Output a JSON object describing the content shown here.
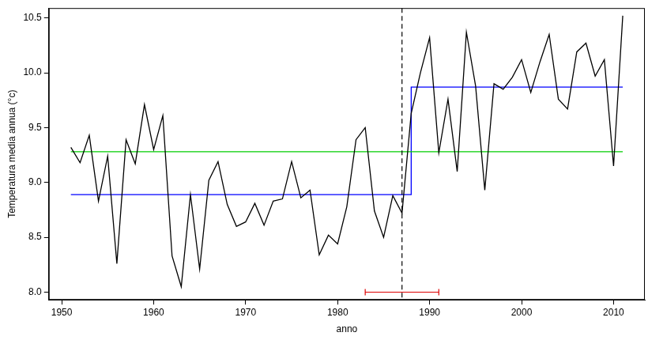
{
  "chart_data": {
    "type": "line",
    "xlabel": "anno",
    "ylabel": "Temperatura media annua (°c)",
    "xlim": [
      1948.6,
      2013.4
    ],
    "xticks": [
      1950,
      1960,
      1970,
      1980,
      1990,
      2000,
      2010
    ],
    "ylim": [
      7.93,
      10.59
    ],
    "yticks": [
      {
        "value": 8,
        "label": "8.0"
      },
      {
        "value": 8.5,
        "label": "8.5"
      },
      {
        "value": 9,
        "label": "9.0"
      },
      {
        "value": 9.5,
        "label": "9.5"
      },
      {
        "value": 10,
        "label": "10.0"
      },
      {
        "value": 10.5,
        "label": "10.5"
      }
    ],
    "grid": false,
    "series": [
      {
        "color": "#000000",
        "marker": "none",
        "line_style": "solid",
        "x": [
          1951,
          1952,
          1953,
          1954,
          1955,
          1956,
          1957,
          1958,
          1959,
          1960,
          1961,
          1962,
          1963,
          1964,
          1965,
          1966,
          1967,
          1968,
          1969,
          1970,
          1971,
          1972,
          1973,
          1974,
          1975,
          1976,
          1977,
          1978,
          1979,
          1980,
          1981,
          1982,
          1983,
          1984,
          1985,
          1986,
          1987,
          1988,
          1989,
          1990,
          1991,
          1992,
          1993,
          1994,
          1995,
          1996,
          1997,
          1998,
          1999,
          2000,
          2001,
          2002,
          2003,
          2004,
          2005,
          2006,
          2007,
          2008,
          2009,
          2010,
          2011
        ],
        "values": [
          9.32,
          9.18,
          9.43,
          8.83,
          9.24,
          8.26,
          9.39,
          9.17,
          9.71,
          9.3,
          9.61,
          8.33,
          8.05,
          8.89,
          8.21,
          9.02,
          9.19,
          8.8,
          8.6,
          8.64,
          8.81,
          8.61,
          8.83,
          8.85,
          9.19,
          8.86,
          8.93,
          8.34,
          8.52,
          8.44,
          8.78,
          9.39,
          9.5,
          8.74,
          8.5,
          8.88,
          8.72,
          9.63,
          10.0,
          10.32,
          9.27,
          9.76,
          9.1,
          10.37,
          9.88,
          8.93,
          9.9,
          9.85,
          9.96,
          10.12,
          9.82,
          10.1,
          10.35,
          9.76,
          9.67,
          10.19,
          10.27,
          9.97,
          10.12,
          9.15,
          10.52
        ]
      },
      {
        "color": "#00cd00",
        "marker": "none",
        "line_style": "solid",
        "x": [
          1951,
          2011
        ],
        "values": [
          9.28,
          9.28
        ]
      },
      {
        "color": "#0000ff",
        "marker": "none",
        "line_style": "solid",
        "x": [
          1951,
          1988,
          1988,
          2011
        ],
        "values": [
          8.89,
          8.89,
          9.87,
          9.87
        ]
      }
    ],
    "annotations": [
      {
        "type": "vline",
        "x": 1987,
        "color": "#000000",
        "line_style": "dashed"
      },
      {
        "type": "interval",
        "x": [
          1983,
          1991
        ],
        "y": 8.0,
        "color": "#dd0000"
      }
    ]
  }
}
